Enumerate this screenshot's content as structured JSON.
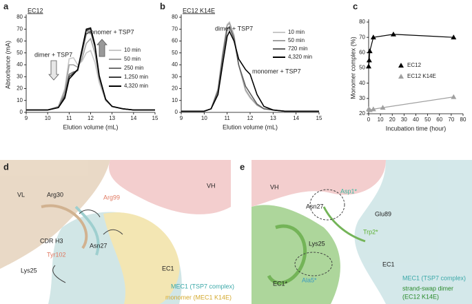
{
  "chart_data": [
    {
      "type": "line",
      "panel_label": "a",
      "title": "EC12",
      "x_label": "Elution volume (mL)",
      "y_label": "Absorbance (mA)",
      "x": [
        9,
        9.5,
        10,
        10.5,
        10.8,
        11,
        11.2,
        11.4,
        11.6,
        11.8,
        12,
        12.2,
        12.4,
        12.7,
        13,
        13.5,
        14,
        15
      ],
      "series": [
        {
          "name": "10 min",
          "color": "#c8c8c8",
          "values": [
            2,
            2,
            2,
            5,
            20,
            45,
            46,
            40,
            43,
            50,
            52,
            42,
            25,
            10,
            5,
            3,
            2,
            2
          ]
        },
        {
          "name": "50 min",
          "color": "#a0a0a0",
          "values": [
            2,
            2,
            2,
            5,
            18,
            40,
            40,
            38,
            45,
            58,
            62,
            50,
            28,
            10,
            5,
            3,
            2,
            2
          ]
        },
        {
          "name": "250 min",
          "color": "#707070",
          "values": [
            2,
            2,
            2,
            4,
            15,
            32,
            34,
            35,
            50,
            66,
            68,
            55,
            30,
            11,
            5,
            3,
            2,
            2
          ]
        },
        {
          "name": "1,250 min",
          "color": "#3c3c3c",
          "values": [
            2,
            2,
            2,
            4,
            13,
            30,
            33,
            36,
            52,
            69,
            70,
            56,
            30,
            11,
            5,
            3,
            2,
            2
          ]
        },
        {
          "name": "4,320 min",
          "color": "#000000",
          "values": [
            2,
            2,
            2,
            4,
            12,
            28,
            32,
            36,
            53,
            70,
            71,
            57,
            31,
            11,
            5,
            3,
            2,
            2
          ]
        }
      ],
      "annotations": [
        "dimer + TSP7",
        "monomer + TSP7"
      ],
      "xlim": [
        9,
        15
      ],
      "xticks": [
        9,
        10,
        11,
        12,
        13,
        14,
        15
      ],
      "ylim": [
        0,
        80
      ],
      "yticks": [
        0,
        10,
        20,
        30,
        40,
        50,
        60,
        70,
        80
      ]
    },
    {
      "type": "line",
      "panel_label": "b",
      "title": "EC12 K14E",
      "x_label": "Elution volume (mL)",
      "x": [
        9,
        9.5,
        10,
        10.3,
        10.6,
        10.8,
        11,
        11.1,
        11.3,
        11.5,
        11.8,
        12,
        12.3,
        12.6,
        13,
        13.5,
        14,
        15
      ],
      "series": [
        {
          "name": "10 min",
          "color": "#c8c8c8",
          "values": [
            1,
            1,
            1,
            3,
            20,
            50,
            74,
            76,
            65,
            40,
            18,
            12,
            6,
            3,
            2,
            1,
            1,
            1
          ]
        },
        {
          "name": "50 min",
          "color": "#a0a0a0",
          "values": [
            1,
            1,
            1,
            3,
            19,
            48,
            73,
            75,
            64,
            40,
            19,
            13,
            6,
            3,
            2,
            1,
            1,
            1
          ]
        },
        {
          "name": "720 min",
          "color": "#606060",
          "values": [
            1,
            1,
            1,
            3,
            18,
            46,
            70,
            72,
            62,
            40,
            22,
            16,
            7,
            3,
            2,
            1,
            1,
            1
          ]
        },
        {
          "name": "4,320 min",
          "color": "#000000",
          "values": [
            1,
            1,
            1,
            3,
            15,
            40,
            64,
            68,
            60,
            45,
            36,
            32,
            15,
            5,
            2,
            1,
            1,
            1
          ]
        }
      ],
      "annotations": [
        "dimer + TSP7",
        "monomer + TSP7"
      ],
      "xlim": [
        9,
        15
      ],
      "xticks": [
        9,
        10,
        11,
        12,
        13,
        14,
        15
      ],
      "ylim": [
        0,
        80
      ],
      "yticks": [
        0,
        10,
        20,
        30,
        40,
        50,
        60,
        70,
        80
      ]
    },
    {
      "type": "scatter",
      "panel_label": "c",
      "x_label": "Incubation time (hour)",
      "y_label": "Monomer complex (%)",
      "series": [
        {
          "name": "EC12",
          "color": "#000000",
          "x": [
            0,
            0.5,
            1,
            4,
            21,
            72
          ],
          "values": [
            51,
            55,
            61,
            70,
            72,
            70
          ]
        },
        {
          "name": "EC12 K14E",
          "color": "#a0a0a0",
          "x": [
            0,
            1,
            4,
            12,
            72
          ],
          "values": [
            23,
            22.5,
            23,
            24,
            31
          ]
        }
      ],
      "legend": "center right",
      "xlim": [
        0,
        80
      ],
      "xticks": [
        0,
        10,
        20,
        30,
        40,
        50,
        60,
        70,
        80
      ],
      "ylim": [
        20,
        80
      ],
      "yticks": [
        20,
        30,
        40,
        50,
        60,
        70,
        80
      ]
    }
  ],
  "structure_panels": [
    {
      "panel_label": "d",
      "labels": [
        "VL",
        "VH",
        "Arg30",
        "Arg99",
        "CDR H3",
        "Tyr102",
        "Asn27",
        "Lys25",
        "EC1",
        "MEC1 (TSP7 complex)",
        "monomer (MEC1 K14E)"
      ]
    },
    {
      "panel_label": "e",
      "labels": [
        "VH",
        "Asn27",
        "Asp1*",
        "Glu89",
        "Trp2*",
        "Lys25",
        "EC1",
        "EC1*",
        "Ala5*",
        "MEC1 (TSP7 complex)",
        "strand-swap dimer",
        "(EC12 K14E)"
      ]
    }
  ]
}
